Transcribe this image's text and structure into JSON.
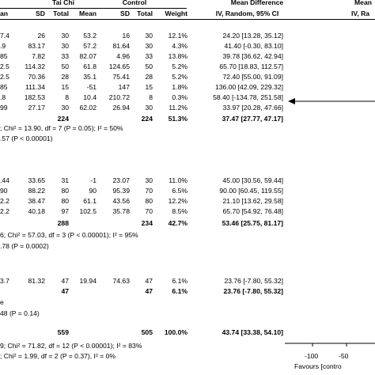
{
  "header": {
    "group1": "Tai Chi",
    "group2": "Control",
    "cols": [
      "an",
      "SD",
      "Total",
      "Mean",
      "SD",
      "Total",
      "Weight"
    ],
    "effect_title": "Mean Difference",
    "effect_sub": "IV, Random, 95% CI",
    "plot_title": "Mean",
    "plot_sub": "IV, Ra"
  },
  "section1": {
    "rows": [
      {
        "tm": "7.4",
        "tsd": "26",
        "tn": "30",
        "cm": "53.2",
        "csd": "16",
        "cn": "30",
        "w": "12.1%",
        "ci": "24.20 [13.28, 35.12]"
      },
      {
        "tm": ".9",
        "tsd": "83.17",
        "tn": "30",
        "cm": "57.2",
        "csd": "81.64",
        "cn": "30",
        "w": "4.3%",
        "ci": "41.40 [-0.30, 83.10]"
      },
      {
        "tm": "85",
        "tsd": "7.82",
        "tn": "33",
        "cm": "82.07",
        "csd": "4.96",
        "cn": "33",
        "w": "13.8%",
        "ci": "39.78 [36.62, 42.94]"
      },
      {
        "tm": "2.5",
        "tsd": "114.32",
        "tn": "50",
        "cm": "61.8",
        "csd": "124.65",
        "cn": "50",
        "w": "5.2%",
        "ci": "65.70 [18.83, 112.57]"
      },
      {
        "tm": "2.5",
        "tsd": "70.36",
        "tn": "28",
        "cm": "35.1",
        "csd": "75.41",
        "cn": "28",
        "w": "5.2%",
        "ci": "72.40 [55.00, 91.09]"
      },
      {
        "tm": "85",
        "tsd": "111.34",
        "tn": "15",
        "cm": "-51",
        "csd": "147",
        "cn": "15",
        "w": "1.8%",
        "ci": "136.00 [42.09, 229.32]"
      },
      {
        "tm": ".8",
        "tsd": "182.53",
        "tn": "8",
        "cm": "10.4",
        "csd": "210.72",
        "cn": "8",
        "w": "0.3%",
        "ci": "58.40 [-134.78, 251.58]"
      },
      {
        "tm": "99",
        "tsd": "27.17",
        "tn": "30",
        "cm": "62.02",
        "csd": "26.94",
        "cn": "30",
        "w": "11.2%",
        "ci": "33.97 [20.28, 47.66]"
      }
    ],
    "total_t": "224",
    "total_c": "224",
    "weight": "51.3%",
    "ci": "37.47 [27.77, 47.17]",
    "het": "; Chi² = 13.90, df = 7 (P = 0.05); I² = 50%",
    "z": ".57 (P < 0.00001)"
  },
  "section2": {
    "rows": [
      {
        "tm": ".44",
        "tsd": "33.65",
        "tn": "31",
        "cm": "-1",
        "csd": "23.07",
        "cn": "30",
        "w": "11.0%",
        "ci": "45.00 [30.56, 59.44]"
      },
      {
        "tm": "90",
        "tsd": "88.22",
        "tn": "80",
        "cm": "90",
        "csd": "95.39",
        "cn": "70",
        "w": "6.5%",
        "ci": "90.00 [60.45, 119.55]"
      },
      {
        "tm": "2.2",
        "tsd": "38.47",
        "tn": "80",
        "cm": "61.1",
        "csd": "43.56",
        "cn": "80",
        "w": "12.2%",
        "ci": "21.10 [13.62, 29.58]"
      },
      {
        "tm": "2.2",
        "tsd": "40.18",
        "tn": "97",
        "cm": "102.5",
        "csd": "35.78",
        "cn": "70",
        "w": "8.5%",
        "ci": "65.70 [54.92, 76.48]"
      }
    ],
    "total_t": "288",
    "total_c": "234",
    "weight": "42.7%",
    "ci": "53.46 [25.75, 81.17]",
    "het": "6; Chi² = 57.03, df = 3 (P < 0.00001); I² = 95%",
    "z": ".78 (P = 0.0002)"
  },
  "section3": {
    "rows": [
      {
        "tm": "3.7",
        "tsd": "81.32",
        "tn": "47",
        "cm": "19.94",
        "csd": "74.63",
        "cn": "47",
        "w": "6.1%",
        "ci": "23.76 [-7.80, 55.32]"
      }
    ],
    "total_t": "47",
    "total_c": "47",
    "weight": "6.1%",
    "ci": "23.76 [-7.80, 55.32]",
    "het": "e",
    "z": "48 (P = 0.14)"
  },
  "overall": {
    "total_t": "559",
    "total_c": "505",
    "weight": "100.0%",
    "ci": "43.74 [33.38, 54.10]",
    "het": "9; Chi² = 71.82, df = 12 (P < 0.00001); I² = 83%",
    "subgroup": "; Chi² = 1.99, df = 2 (P = 0.37), I² = 0%"
  },
  "axis": {
    "ticks": [
      "-100",
      "-50"
    ],
    "favours": "Favours [contro"
  },
  "chart_data": {
    "type": "forest",
    "axis_ticks_visible": [
      -100,
      -50
    ],
    "studies_ci": [
      [
        24.2,
        13.28,
        35.12
      ],
      [
        41.4,
        -0.3,
        83.1
      ],
      [
        39.78,
        36.62,
        42.94
      ],
      [
        65.7,
        18.83,
        112.57
      ],
      [
        72.4,
        55.0,
        91.09
      ],
      [
        136.0,
        42.09,
        229.32
      ],
      [
        58.4,
        -134.78,
        251.58
      ],
      [
        33.97,
        20.28,
        47.66
      ],
      [
        45.0,
        30.56,
        59.44
      ],
      [
        90.0,
        60.45,
        119.55
      ],
      [
        21.1,
        13.62,
        29.58
      ],
      [
        65.7,
        54.92,
        76.48
      ],
      [
        23.76,
        -7.8,
        55.32
      ]
    ],
    "note": "only the left edge of the plot area is visible; one arrow points left at row 7"
  }
}
